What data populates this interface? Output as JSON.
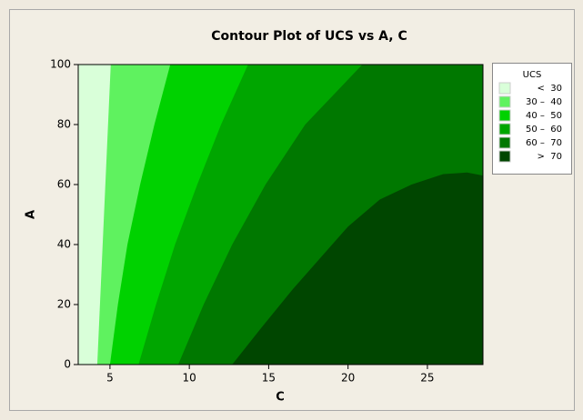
{
  "chart_data": {
    "type": "contour",
    "title": "Contour Plot of UCS vs A, C",
    "x_label": "C",
    "y_label": "A",
    "xlim": [
      3,
      28.5
    ],
    "ylim": [
      0,
      100
    ],
    "xticks": [
      5,
      10,
      15,
      20,
      25
    ],
    "yticks": [
      0,
      20,
      40,
      60,
      80,
      100
    ],
    "base_color": "#d9ffd9",
    "contours": [
      {
        "level": 30,
        "color": "#5ff25f",
        "x": [
          4.2,
          5.05
        ],
        "y": [
          0,
          100
        ]
      },
      {
        "level": 40,
        "color": "#00d200",
        "x": [
          5,
          5.5,
          6.1,
          6.9,
          7.8,
          8.8
        ],
        "y": [
          0,
          20,
          40,
          60,
          80,
          100
        ]
      },
      {
        "level": 50,
        "color": "#00a600",
        "x": [
          6.8,
          7.9,
          9.1,
          10.5,
          12,
          13.7
        ],
        "y": [
          0,
          20,
          40,
          60,
          80,
          100
        ]
      },
      {
        "level": 60,
        "color": "#007800",
        "x": [
          9.3,
          10.9,
          12.7,
          14.8,
          17.3,
          20.9
        ],
        "y": [
          0,
          20,
          40,
          60,
          80,
          100
        ]
      },
      {
        "level": 70,
        "color": "#004600",
        "x": [
          12.7,
          14.5,
          16.5,
          18.5,
          20,
          22,
          24,
          26,
          27.5,
          28.5
        ],
        "y": [
          0,
          12,
          25,
          37,
          46,
          55,
          60,
          63.5,
          64,
          63
        ]
      }
    ],
    "legend": {
      "title": "UCS",
      "entries": [
        {
          "label": "<  30",
          "color": "#d9ffd9"
        },
        {
          "label": "30 –  40",
          "color": "#5ff25f"
        },
        {
          "label": "40 –  50",
          "color": "#00d200"
        },
        {
          "label": "50 –  60",
          "color": "#00a600"
        },
        {
          "label": "60 –  70",
          "color": "#007800"
        },
        {
          "label": ">  70",
          "color": "#004600"
        }
      ]
    }
  }
}
